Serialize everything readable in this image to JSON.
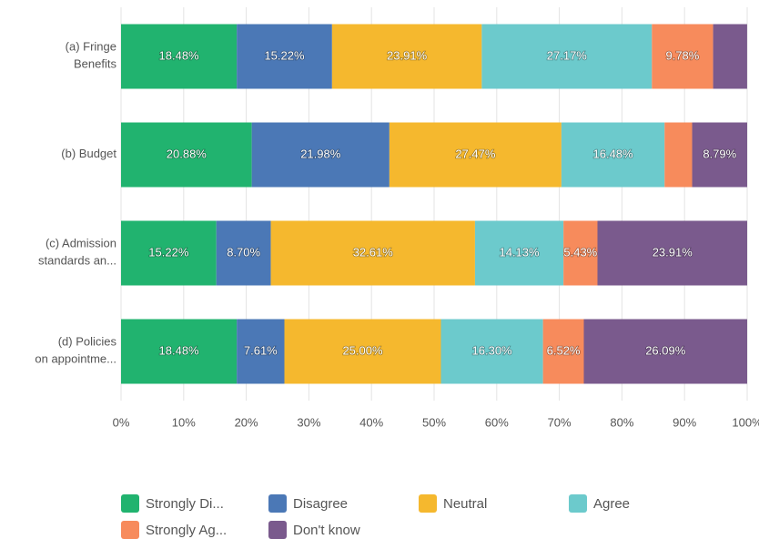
{
  "chart_data": {
    "type": "stacked-bar-horizontal",
    "categories": [
      "(a) Fringe\nBenefits",
      "(b) Budget",
      "(c) Admission\nstandards an...",
      "(d) Policies\non appointme..."
    ],
    "series": [
      {
        "name": "Strongly Di...",
        "color": "#21b36f",
        "values": [
          18.48,
          20.88,
          15.22,
          18.48
        ],
        "value_labels": [
          "18.48%",
          "20.88%",
          "15.22%",
          "18.48%"
        ]
      },
      {
        "name": "Disagree",
        "color": "#4b78b6",
        "values": [
          15.22,
          21.98,
          8.7,
          7.61
        ],
        "value_labels": [
          "15.22%",
          "21.98%",
          "8.70%",
          "7.61%"
        ]
      },
      {
        "name": "Neutral",
        "color": "#f5b82e",
        "values": [
          23.91,
          27.47,
          32.61,
          25.0
        ],
        "value_labels": [
          "23.91%",
          "27.47%",
          "32.61%",
          "25.00%"
        ]
      },
      {
        "name": "Agree",
        "color": "#6ccacc",
        "values": [
          27.17,
          16.48,
          14.13,
          16.3
        ],
        "value_labels": [
          "27.17%",
          "16.48%",
          "14.13%",
          "16.30%"
        ]
      },
      {
        "name": "Strongly Ag...",
        "color": "#f78b5c",
        "values": [
          9.78,
          4.4,
          5.43,
          6.52
        ],
        "value_labels": [
          "9.78%",
          null,
          "5.43%",
          "6.52%"
        ]
      },
      {
        "name": "Don't know",
        "color": "#7a5a8d",
        "values": [
          5.43,
          8.79,
          23.91,
          26.09
        ],
        "value_labels": [
          null,
          "8.79%",
          "23.91%",
          "26.09%"
        ]
      }
    ],
    "xlim": [
      0,
      100
    ],
    "xticks": [
      {
        "value": 0,
        "label": "0%"
      },
      {
        "value": 10,
        "label": "10%"
      },
      {
        "value": 20,
        "label": "20%"
      },
      {
        "value": 30,
        "label": "30%"
      },
      {
        "value": 40,
        "label": "40%"
      },
      {
        "value": 50,
        "label": "50%"
      },
      {
        "value": 60,
        "label": "60%"
      },
      {
        "value": 70,
        "label": "70%"
      },
      {
        "value": 80,
        "label": "80%"
      },
      {
        "value": 90,
        "label": "90%"
      },
      {
        "value": 100,
        "label": "100%"
      }
    ],
    "grid": true,
    "legend": "bottom"
  }
}
